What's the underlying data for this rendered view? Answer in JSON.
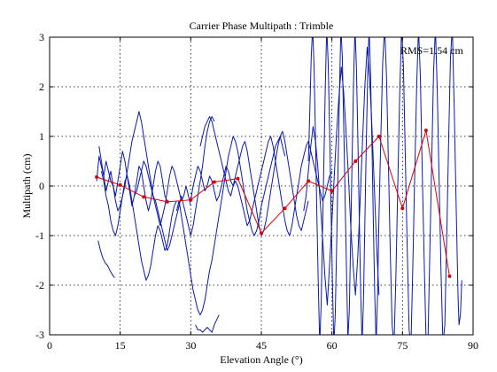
{
  "chart_data": {
    "type": "line",
    "title": "Carrier Phase Multipath : Trimble",
    "xlabel": "Elevation Angle (°)",
    "ylabel": "Multipath (cm)",
    "xlim": [
      0,
      90
    ],
    "ylim": [
      -3,
      3
    ],
    "xticks": [
      0,
      15,
      30,
      45,
      60,
      75,
      90
    ],
    "yticks": [
      -3,
      -2,
      -1,
      0,
      1,
      2,
      3
    ],
    "grid": true,
    "annotation": "RMS=1.54 cm",
    "colors": {
      "raw": "#0a1aa8",
      "binned": "#e00000",
      "grid": "#000000"
    },
    "series": [
      {
        "style": "raw",
        "x": [
          10,
          10.5,
          11,
          11.5,
          12,
          12.5,
          13,
          13.5,
          14,
          14.5,
          15,
          15.5,
          16,
          16.5,
          17,
          17.5,
          18,
          18.5,
          19,
          19.5,
          20,
          20.5,
          21,
          21.5,
          22,
          22.5,
          23,
          23.5,
          24,
          24.5,
          25,
          25.5,
          26,
          26.5,
          27,
          27.5,
          28,
          28.5,
          29,
          29.5,
          30
        ],
        "y": [
          0.1,
          0.6,
          0.4,
          0.2,
          0.5,
          0.3,
          0.1,
          0.0,
          -0.3,
          -0.5,
          -0.4,
          -0.2,
          0.0,
          0.3,
          0.6,
          0.9,
          1.1,
          1.3,
          1.5,
          1.3,
          1.0,
          0.7,
          0.4,
          0.1,
          -0.2,
          -0.4,
          -0.6,
          -0.8,
          -0.6,
          -0.4,
          -0.1,
          0.2,
          0.4,
          0.3,
          0.1,
          -0.1,
          -0.3,
          -0.2,
          0.0,
          -0.2,
          -0.4
        ]
      },
      {
        "style": "raw",
        "x": [
          11,
          11.5,
          12,
          12.5,
          13,
          13.5,
          14,
          14.5,
          15,
          15.5,
          16,
          16.5,
          17,
          17.5,
          18,
          18.5,
          19,
          19.5,
          20,
          20.5,
          21,
          21.5,
          22,
          22.5,
          23,
          23.5,
          24,
          24.5,
          25,
          25.5,
          26,
          26.5,
          27
        ],
        "y": [
          0.3,
          0.1,
          -0.2,
          -0.4,
          -0.7,
          -0.9,
          -1.0,
          -0.8,
          -0.5,
          -0.2,
          0.1,
          0.2,
          0.0,
          -0.3,
          -0.6,
          -0.9,
          -1.2,
          -1.5,
          -1.7,
          -1.9,
          -1.8,
          -1.6,
          -1.3,
          -1.0,
          -0.8,
          -0.9,
          -1.1,
          -1.3,
          -1.2,
          -0.9,
          -0.6,
          -0.4,
          -0.3
        ]
      },
      {
        "style": "raw",
        "x": [
          10.5,
          11,
          11.5,
          12,
          12.5,
          13,
          13.5,
          14,
          14.5,
          15,
          15.5,
          16,
          16.5,
          17,
          17.5,
          18,
          18.5,
          19,
          19.5,
          20,
          20.5,
          21,
          21.5,
          22,
          22.5,
          23,
          23.5,
          24,
          24.5,
          25
        ],
        "y": [
          0.8,
          0.5,
          0.2,
          -0.1,
          0.1,
          0.3,
          0.0,
          -0.2,
          0.1,
          0.4,
          0.7,
          0.5,
          0.2,
          -0.1,
          -0.4,
          -0.2,
          0.1,
          0.4,
          0.3,
          0.0,
          -0.3,
          -0.5,
          -0.3,
          0.0,
          0.3,
          0.5,
          0.4,
          0.1,
          -0.2,
          -0.3
        ]
      },
      {
        "style": "raw",
        "x": [
          10.3,
          10.8,
          11.3,
          11.8,
          12.3,
          12.8,
          13.3,
          13.8
        ],
        "y": [
          -1.1,
          -1.3,
          -1.45,
          -1.55,
          -1.6,
          -1.7,
          -1.78,
          -1.85
        ]
      },
      {
        "style": "raw",
        "x": [
          18,
          18.5,
          19,
          19.5,
          20,
          20.5,
          21,
          21.5,
          22,
          22.5,
          23,
          23.5,
          24,
          24.5,
          25,
          25.5,
          26,
          26.5,
          27,
          27.5,
          28,
          28.5,
          29,
          29.5,
          30,
          30.5,
          31,
          31.5,
          32,
          32.5,
          33,
          33.5,
          34,
          34.5,
          35
        ],
        "y": [
          -0.2,
          -0.1,
          0.1,
          0.3,
          0.5,
          0.4,
          0.2,
          0.0,
          -0.2,
          -0.3,
          -0.5,
          -0.7,
          -0.9,
          -1.1,
          -1.3,
          -1.2,
          -1.0,
          -0.8,
          -0.6,
          -0.4,
          -0.2,
          -0.4,
          -0.6,
          -0.8,
          -1.0,
          -0.8,
          -0.5,
          -0.2,
          0.1,
          0.4,
          0.8,
          1.1,
          1.3,
          1.4,
          1.3
        ]
      },
      {
        "style": "raw",
        "x": [
          27,
          27.5,
          28,
          28.5,
          29,
          29.5,
          30,
          30.5,
          31,
          31.5,
          32,
          32.5,
          33,
          33.5,
          34,
          34.5,
          35,
          35.5,
          36,
          36.5,
          37,
          37.5,
          38,
          38.5,
          39,
          39.5,
          40,
          40.5,
          41,
          41.5,
          42,
          42.5,
          43,
          43.5,
          44,
          44.5,
          45,
          45.5,
          46,
          46.5,
          47,
          47.5,
          48,
          48.5,
          49,
          49.5,
          50
        ],
        "y": [
          -0.5,
          -0.3,
          -0.6,
          -0.9,
          -1.2,
          -1.5,
          -1.8,
          -2.1,
          -2.3,
          -2.5,
          -2.6,
          -2.5,
          -2.3,
          -2.0,
          -1.7,
          -1.5,
          -1.2,
          -0.9,
          -0.6,
          -0.3,
          0.0,
          0.3,
          0.6,
          0.8,
          1.0,
          0.9,
          0.7,
          0.4,
          0.1,
          -0.2,
          -0.5,
          -0.7,
          -0.9,
          -1.0,
          -0.9,
          -0.7,
          -0.4,
          -0.2,
          0.0,
          0.2,
          0.4,
          0.6,
          0.8,
          0.9,
          1.0,
          0.8,
          0.6
        ]
      },
      {
        "style": "raw",
        "x": [
          30,
          30.5,
          31,
          31.5,
          32,
          32.5,
          33,
          33.5,
          34,
          34.5,
          35,
          35.5,
          36,
          36.5,
          37,
          37.5,
          38,
          38.5,
          39,
          39.5,
          40,
          40.5,
          41,
          41.5,
          42,
          42.5,
          43,
          43.5,
          44,
          44.5,
          45,
          45.5,
          46,
          46.5,
          47,
          47.5,
          48,
          48.5,
          49,
          49.5,
          50,
          50.5,
          51,
          51.5,
          52,
          52.5,
          53,
          53.5,
          54,
          54.5,
          55
        ],
        "y": [
          -0.3,
          0.0,
          0.2,
          0.4,
          0.3,
          0.1,
          -0.1,
          0.0,
          0.2,
          0.1,
          -0.1,
          -0.3,
          -0.2,
          0.0,
          0.2,
          0.4,
          0.3,
          0.1,
          0.0,
          0.2,
          0.4,
          0.6,
          0.8,
          0.9,
          0.7,
          0.4,
          0.1,
          -0.2,
          -0.5,
          -0.8,
          -1.0,
          -0.9,
          -0.7,
          -0.4,
          -0.1,
          0.2,
          0.5,
          0.8,
          1.0,
          1.1,
          0.9,
          0.6,
          0.3,
          0.0,
          -0.3,
          -0.6,
          -0.8,
          -0.9,
          -0.7,
          -0.5,
          -0.3
        ]
      },
      {
        "style": "raw",
        "x": [
          32,
          32.5,
          33,
          33.5,
          34,
          34.5,
          35,
          35.5,
          36,
          36.5,
          37,
          37.5,
          38,
          38.5,
          39,
          39.5,
          40,
          40.5,
          41,
          41.5,
          42,
          42.5,
          43,
          43.5,
          44,
          44.5,
          45,
          45.5,
          46,
          46.5,
          47,
          47.5,
          48,
          48.5,
          49,
          49.5,
          50,
          50.5,
          51,
          51.5,
          52,
          52.5,
          53,
          53.5,
          54,
          54.5,
          55,
          55.5,
          56,
          56.5,
          57,
          57.5,
          58,
          58.5,
          59,
          59.5,
          60
        ],
        "y": [
          0.8,
          1.0,
          1.2,
          1.3,
          1.4,
          1.3,
          1.1,
          0.9,
          0.7,
          0.5,
          0.3,
          0.1,
          -0.1,
          -0.2,
          0.0,
          0.1,
          0.0,
          -0.2,
          -0.4,
          -0.6,
          -0.8,
          -0.7,
          -0.5,
          -0.3,
          -0.1,
          0.1,
          0.3,
          0.5,
          0.7,
          0.9,
          1.0,
          0.8,
          0.5,
          0.2,
          -0.1,
          -0.4,
          -0.7,
          -0.9,
          -1.0,
          -0.8,
          -0.5,
          -0.2,
          0.1,
          0.4,
          0.6,
          0.8,
          0.9,
          0.7,
          0.5,
          0.3,
          0.1,
          -0.1,
          -0.3,
          -0.2,
          0.0,
          0.2,
          0.3
        ]
      },
      {
        "style": "raw",
        "x": [
          31,
          31.5,
          32,
          32.5,
          33,
          33.5,
          34,
          34.5,
          35,
          35.5,
          36
        ],
        "y": [
          -2.8,
          -2.9,
          -2.9,
          -2.95,
          -2.9,
          -2.85,
          -2.9,
          -2.95,
          -2.8,
          -2.7,
          -2.6
        ]
      },
      {
        "style": "raw",
        "x": [
          54,
          54.5,
          55,
          55.5,
          56,
          56.5,
          57,
          57.5,
          58,
          58.5,
          59,
          59.5,
          60,
          60.5,
          61,
          61.5,
          62,
          62.5,
          63,
          63.5,
          64,
          64.5,
          65,
          65.5,
          66,
          66.5,
          67,
          67.5,
          68,
          68.5,
          69,
          69.5,
          70
        ],
        "y": [
          -0.5,
          -0.2,
          0.3,
          0.8,
          1.2,
          0.9,
          0.4,
          -0.3,
          -1.0,
          -1.8,
          -2.4,
          -1.6,
          -0.7,
          0.2,
          1.1,
          1.8,
          2.4,
          1.9,
          1.1,
          0.2,
          -0.8,
          -1.6,
          -2.2,
          -1.4,
          -0.3,
          0.9,
          2.0,
          2.8,
          2.2,
          1.2,
          0.0,
          -1.2,
          -2.2
        ]
      },
      {
        "style": "raw",
        "x": [
          55,
          55.3,
          55.6,
          55.9,
          56.2,
          56.5,
          56.8,
          57.1,
          57.4,
          57.7,
          58,
          58.3,
          58.6,
          58.9,
          59.2,
          59.5,
          59.8,
          60.1,
          60.4,
          60.7,
          61,
          61.3,
          61.6,
          61.9,
          62.2,
          62.5,
          62.8,
          63.1,
          63.4,
          63.7,
          64,
          64.3,
          64.6,
          64.9,
          65.2,
          65.5,
          65.8,
          66.1,
          66.4,
          66.7,
          67,
          67.3,
          67.6,
          67.9,
          68.2,
          68.5,
          68.8,
          69.1,
          69.4,
          69.7,
          70
        ],
        "y": [
          0.5,
          1.5,
          2.6,
          3.2,
          2.4,
          1.0,
          -0.6,
          -2.0,
          -3.2,
          -2.4,
          -1.0,
          0.5,
          2.0,
          3.2,
          2.5,
          1.2,
          -0.4,
          -1.9,
          -3.2,
          -2.6,
          -1.2,
          0.4,
          1.9,
          3.2,
          2.6,
          1.3,
          -0.2,
          -1.7,
          -3.1,
          -2.5,
          -1.0,
          0.6,
          2.1,
          3.2,
          2.4,
          1.0,
          -0.6,
          -2.1,
          -3.2,
          -2.3,
          -0.8,
          0.8,
          2.2,
          3.2,
          2.3,
          0.9,
          -0.7,
          -2.2,
          -3.2,
          -2.2,
          -0.6
        ]
      },
      {
        "style": "raw",
        "x": [
          70,
          70.4,
          70.8,
          71.2,
          71.6,
          72,
          72.4,
          72.8,
          73.2,
          73.6,
          74,
          74.4,
          74.8,
          75.2,
          75.6,
          76,
          76.4,
          76.8,
          77.2,
          77.6,
          78,
          78.4,
          78.8,
          79.2,
          79.6,
          80,
          80.4,
          80.8,
          81.2,
          81.6,
          82,
          82.4,
          82.8,
          83.2,
          83.6,
          84,
          84.4,
          84.8,
          85.2,
          85.6,
          86,
          86.4,
          86.8,
          87,
          87.3,
          87.6
        ],
        "y": [
          -0.6,
          1.0,
          2.5,
          3.2,
          2.2,
          0.5,
          -1.3,
          -2.8,
          -3.2,
          -1.8,
          0.0,
          1.8,
          3.2,
          2.4,
          0.6,
          -1.2,
          -2.9,
          -3.2,
          -1.6,
          0.2,
          2.0,
          3.2,
          2.2,
          0.3,
          -1.5,
          -3.1,
          -3.2,
          -1.4,
          0.5,
          2.3,
          3.2,
          1.9,
          0.0,
          -1.8,
          -3.2,
          -2.8,
          -1.0,
          0.9,
          2.6,
          3.2,
          1.5,
          -0.4,
          -2.2,
          -2.8,
          -2.6,
          -1.9
        ]
      }
    ],
    "binned": {
      "x": [
        10,
        15,
        20,
        25,
        30,
        35,
        40,
        45,
        50,
        55,
        60,
        65,
        70,
        75,
        80,
        85
      ],
      "y": [
        0.18,
        0.02,
        -0.22,
        -0.32,
        -0.28,
        0.08,
        0.15,
        -0.95,
        -0.45,
        0.1,
        -0.1,
        0.5,
        1.0,
        -0.45,
        1.12,
        -1.82
      ]
    }
  }
}
